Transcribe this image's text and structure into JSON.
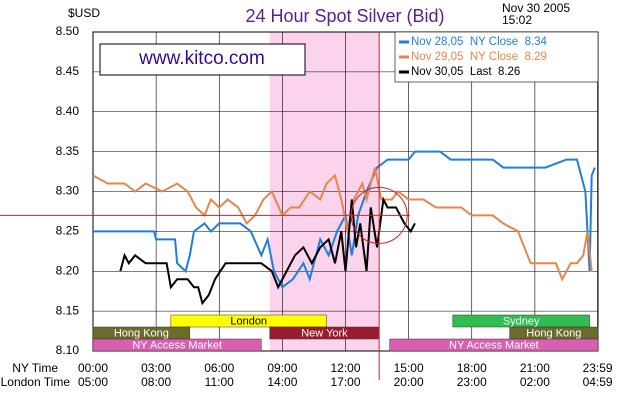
{
  "chart_data": {
    "type": "line",
    "title": "24 Hour Spot Silver (Bid)",
    "y_unit": "$USD",
    "date": "Nov 30 2005",
    "time": "15:02",
    "logo": "www.kitco.com",
    "xlim": [
      0,
      24
    ],
    "ylim": [
      8.1,
      8.5
    ],
    "yticks": [
      {
        "value": 8.5,
        "label": "8.50"
      },
      8.45,
      {
        "value": 8.4,
        "label": "8.40"
      },
      8.35,
      {
        "value": 8.3,
        "label": "8.30"
      },
      8.25,
      {
        "value": 8.2,
        "label": "8.20"
      },
      8.15,
      {
        "value": 8.1,
        "label": "8.10"
      }
    ],
    "x_row_label": "NY Time",
    "xticks": [
      {
        "value": 0,
        "label": "00:00"
      },
      {
        "value": 3,
        "label": "03:00"
      },
      {
        "value": 6,
        "label": "06:00"
      },
      {
        "value": 9,
        "label": "09:00"
      },
      {
        "value": 12,
        "label": "12:00"
      },
      {
        "value": 15,
        "label": "15:00"
      },
      {
        "value": 18,
        "label": "18:00"
      },
      {
        "value": 21,
        "label": "21:00"
      },
      {
        "value": 23.98,
        "label": "23:59"
      }
    ],
    "x2_row_label": "London Time",
    "x2ticks": [
      {
        "value": 0,
        "label": "05:00"
      },
      {
        "value": 3,
        "label": "08:00"
      },
      {
        "value": 6,
        "label": "11:00"
      },
      {
        "value": 9,
        "label": "14:00"
      },
      {
        "value": 12,
        "label": "17:00"
      },
      {
        "value": 15,
        "label": "20:00"
      },
      {
        "value": 18,
        "label": "23:00"
      },
      {
        "value": 21,
        "label": "02:00"
      },
      {
        "value": 23.98,
        "label": "04:59"
      }
    ],
    "grid": true,
    "series": [
      {
        "name": "Nov 28,05  NY Close  8.34",
        "color": "#1f7fd8",
        "x": [
          0,
          2.9,
          3.0,
          3.9,
          4.0,
          4.4,
          4.6,
          4.8,
          5.3,
          5.6,
          6.0,
          7.0,
          7.5,
          8.0,
          8.3,
          8.6,
          9.0,
          9.5,
          10.0,
          10.3,
          10.8,
          11.2,
          11.6,
          12.0,
          12.3,
          12.6,
          13.0,
          13.5,
          14.0,
          15.0,
          15.3,
          16.5,
          17.0,
          19.0,
          19.5,
          20.5,
          21.5,
          22.5,
          23.0,
          23.2,
          23.4,
          23.5,
          23.6,
          23.7,
          23.85
        ],
        "values": [
          8.25,
          8.25,
          8.24,
          8.24,
          8.21,
          8.2,
          8.22,
          8.25,
          8.26,
          8.25,
          8.26,
          8.26,
          8.25,
          8.22,
          8.24,
          8.2,
          8.18,
          8.19,
          8.21,
          8.19,
          8.24,
          8.22,
          8.25,
          8.27,
          8.22,
          8.27,
          8.3,
          8.33,
          8.34,
          8.34,
          8.35,
          8.35,
          8.34,
          8.34,
          8.33,
          8.33,
          8.33,
          8.34,
          8.34,
          8.32,
          8.3,
          8.25,
          8.2,
          8.32,
          8.33
        ]
      },
      {
        "name": "Nov 29,05  NY Close  8.29",
        "color": "#e8864a",
        "x": [
          0,
          0.7,
          1.5,
          2.0,
          2.5,
          3.3,
          4.0,
          4.5,
          4.9,
          5.3,
          5.6,
          6.0,
          6.4,
          6.9,
          7.3,
          7.7,
          8.1,
          8.5,
          9.0,
          9.4,
          9.8,
          10.3,
          10.8,
          11.1,
          11.5,
          11.8,
          12.1,
          12.4,
          12.8,
          13.0,
          13.4,
          13.7,
          14.2,
          14.5,
          15.0,
          15.7,
          16.3,
          17.0,
          17.5,
          18.0,
          19.0,
          19.5,
          20.2,
          20.5,
          20.8,
          21.5,
          22.0,
          22.3,
          22.7,
          23.0,
          23.3,
          23.5,
          23.7
        ],
        "values": [
          8.32,
          8.31,
          8.31,
          8.3,
          8.31,
          8.3,
          8.31,
          8.3,
          8.28,
          8.27,
          8.29,
          8.28,
          8.29,
          8.28,
          8.26,
          8.27,
          8.29,
          8.3,
          8.27,
          8.28,
          8.28,
          8.3,
          8.29,
          8.31,
          8.32,
          8.29,
          8.25,
          8.29,
          8.31,
          8.29,
          8.33,
          8.29,
          8.29,
          8.3,
          8.29,
          8.29,
          8.28,
          8.28,
          8.28,
          8.27,
          8.27,
          8.26,
          8.25,
          8.23,
          8.21,
          8.21,
          8.21,
          8.19,
          8.21,
          8.21,
          8.22,
          8.25,
          8.2
        ]
      },
      {
        "name": "Nov 30,05  Last  8.26",
        "color": "#000000",
        "x": [
          1.3,
          1.5,
          1.7,
          2.0,
          2.5,
          3.0,
          3.5,
          3.7,
          4.0,
          4.5,
          4.8,
          5.0,
          5.2,
          5.5,
          5.8,
          6.3,
          6.8,
          7.5,
          8.0,
          8.5,
          8.8,
          9.2,
          9.6,
          10.0,
          10.4,
          10.8,
          11.2,
          11.5,
          11.8,
          12.0,
          12.3,
          12.5,
          12.7,
          13.0,
          13.2,
          13.5,
          13.8,
          14.0,
          14.4,
          14.8,
          15.1,
          15.3
        ],
        "values": [
          8.2,
          8.22,
          8.21,
          8.22,
          8.21,
          8.21,
          8.21,
          8.18,
          8.19,
          8.19,
          8.18,
          8.18,
          8.16,
          8.17,
          8.19,
          8.21,
          8.21,
          8.21,
          8.21,
          8.2,
          8.18,
          8.2,
          8.22,
          8.23,
          8.21,
          8.23,
          8.24,
          8.21,
          8.25,
          8.2,
          8.29,
          8.23,
          8.26,
          8.2,
          8.28,
          8.23,
          8.29,
          8.28,
          8.28,
          8.26,
          8.25,
          8.26
        ]
      }
    ],
    "marker": {
      "x": 13.6,
      "y": 8.27,
      "color": "#c0282d"
    },
    "sessions": [
      [
        {
          "name": "London",
          "color": "#ffff00",
          "start": 3.7,
          "end": 11.1
        },
        {
          "name": "Sydney",
          "color": "#2ebd4e",
          "start": 17.1,
          "end": 23.6
        }
      ],
      [
        {
          "name": "Hong Kong",
          "color": "#6b6b2a",
          "start": 0,
          "end": 4.6
        },
        {
          "name": "New York",
          "color": "#9b1c2e",
          "start": 8.4,
          "end": 13.6
        },
        {
          "name": "Hong Kong",
          "color": "#6b6b2a",
          "start": 19.8,
          "end": 24
        }
      ],
      [
        {
          "name": "NY Access Market",
          "color": "#d95fb3",
          "start": 0,
          "end": 8.0
        },
        {
          "name": "NY Access Market",
          "color": "#d95fb3",
          "start": 14.1,
          "end": 24
        }
      ]
    ]
  }
}
